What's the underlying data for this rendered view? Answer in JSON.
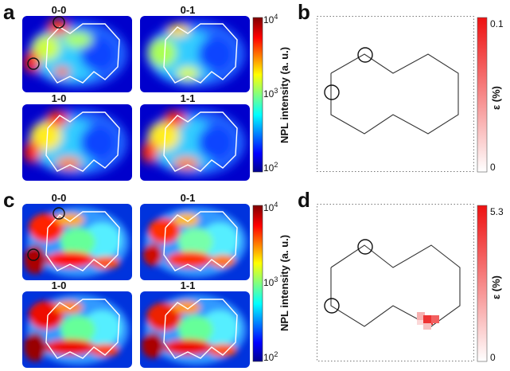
{
  "panels": {
    "a": {
      "letter": "a",
      "maps": [
        {
          "title": "0-0",
          "circles": true
        },
        {
          "title": "0-1",
          "circles": false
        },
        {
          "title": "1-0",
          "circles": false
        },
        {
          "title": "1-1",
          "circles": false
        }
      ],
      "colorbar": {
        "label": "NPL intensity (a. u.)",
        "max_tick": "4",
        "mid_tick": "3",
        "min_tick": "2",
        "base": "10"
      }
    },
    "b": {
      "letter": "b",
      "colorbar": {
        "label": "(%)",
        "symbol": "ε",
        "max": "0.1",
        "min": "0",
        "color_max": "#ee1111"
      }
    },
    "c": {
      "letter": "c",
      "maps": [
        {
          "title": "0-0",
          "circles": true
        },
        {
          "title": "0-1",
          "circles": false
        },
        {
          "title": "1-0",
          "circles": false
        },
        {
          "title": "1-1",
          "circles": false
        }
      ],
      "colorbar": {
        "label": "NPL intensity (a. u.)",
        "max_tick": "4",
        "mid_tick": "3",
        "min_tick": "2",
        "base": "10"
      }
    },
    "d": {
      "letter": "d",
      "colorbar": {
        "label": "(%)",
        "symbol": "ε",
        "max": "5.3",
        "min": "0",
        "color_max": "#ee1111"
      }
    }
  }
}
